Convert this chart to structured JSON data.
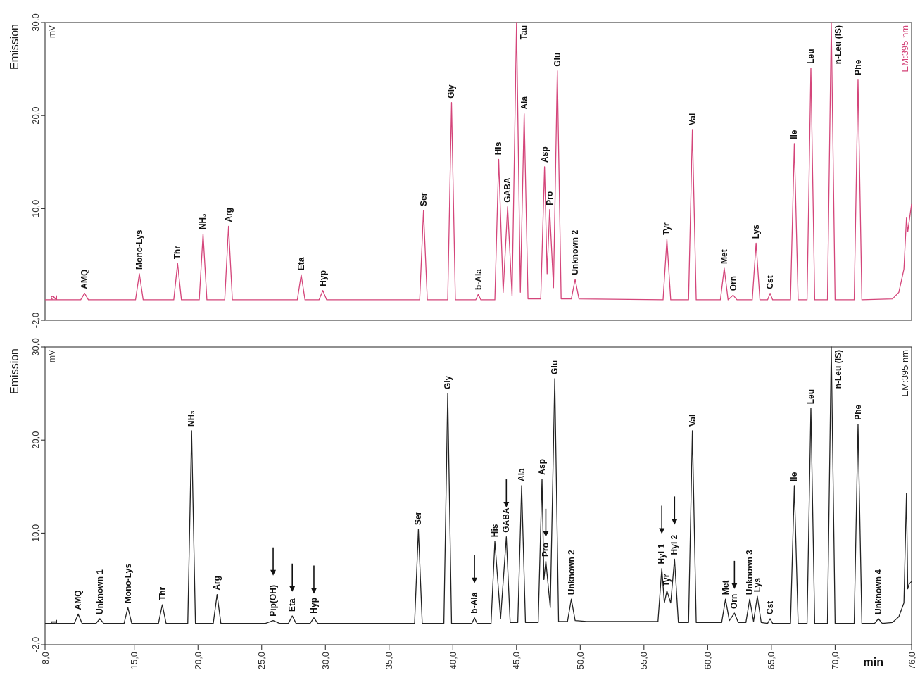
{
  "chart_data": [
    {
      "type": "line",
      "ylabel": "Emission",
      "xlim": [
        8,
        76
      ],
      "ylim": [
        -2,
        30
      ],
      "tick_labels": "y",
      "yticks": [
        {
          "value": -2,
          "label": "-2,0"
        },
        {
          "value": 10,
          "label": "10,0"
        },
        {
          "value": 20,
          "label": "20,0"
        },
        {
          "value": 30,
          "label": "30,0"
        }
      ],
      "series": [
        {
          "color": "#d4457a",
          "x": [
            8.0,
            10.8,
            11.1,
            11.4,
            15.1,
            15.4,
            15.7,
            18.1,
            18.4,
            18.7,
            20.1,
            20.4,
            20.7,
            22.1,
            22.4,
            22.7,
            27.8,
            28.1,
            28.4,
            29.5,
            29.8,
            30.1,
            37.4,
            37.7,
            38.0,
            39.6,
            39.9,
            40.2,
            41.8,
            42.0,
            42.2,
            43.3,
            43.6,
            43.95,
            44.3,
            44.65,
            45.0,
            45.3,
            45.6,
            45.9,
            46.9,
            47.2,
            47.4,
            47.6,
            47.9,
            48.2,
            48.5,
            49.3,
            49.6,
            49.9,
            56.5,
            56.8,
            57.1,
            58.5,
            58.8,
            59.1,
            61.0,
            61.3,
            61.6,
            62.0,
            62.3,
            63.5,
            63.8,
            64.1,
            64.7,
            64.9,
            65.1,
            66.5,
            66.8,
            67.1,
            67.8,
            68.1,
            68.4,
            69.4,
            69.7,
            70.0,
            71.5,
            71.8,
            72.1,
            74.5,
            75.0,
            75.4,
            75.6,
            75.7,
            75.8,
            76.0
          ],
          "values": [
            0.2,
            0.2,
            0.9,
            0.2,
            0.2,
            3.0,
            0.2,
            0.2,
            4.1,
            0.2,
            0.2,
            7.3,
            0.2,
            0.2,
            8.1,
            0.2,
            0.2,
            2.9,
            0.2,
            0.2,
            1.2,
            0.2,
            0.2,
            9.8,
            0.2,
            0.2,
            21.4,
            0.2,
            0.2,
            0.8,
            0.2,
            0.2,
            15.3,
            1.0,
            10.2,
            0.6,
            30,
            1.0,
            20.2,
            0.3,
            0.3,
            14.5,
            3.0,
            9.9,
            1.5,
            24.8,
            0.3,
            0.3,
            2.4,
            0.3,
            0.2,
            6.7,
            0.2,
            0.2,
            18.5,
            0.2,
            0.2,
            3.6,
            0.2,
            0.7,
            0.2,
            0.2,
            6.3,
            0.2,
            0.2,
            0.9,
            0.2,
            0.2,
            17.0,
            0.2,
            0.2,
            25.1,
            0.2,
            0.2,
            30,
            0.2,
            0.2,
            23.9,
            0.2,
            0.3,
            1.0,
            3.5,
            9.0,
            7.5,
            8.5,
            10.5
          ]
        }
      ],
      "annotations": [
        "mV",
        "EM:395 nm",
        "2",
        {
          "text": "AMQ",
          "x": 11.1,
          "y": 0.9
        },
        {
          "text": "Mono-Lys",
          "x": 15.4,
          "y": 3.0
        },
        {
          "text": "Thr",
          "x": 18.4,
          "y": 4.1
        },
        {
          "text": "NH₃",
          "x": 20.4,
          "y": 7.3
        },
        {
          "text": "Arg",
          "x": 22.4,
          "y": 8.1
        },
        {
          "text": "Eta",
          "x": 28.1,
          "y": 2.9
        },
        {
          "text": "Hyp",
          "x": 29.8,
          "y": 1.2
        },
        {
          "text": "Ser",
          "x": 37.7,
          "y": 9.8
        },
        {
          "text": "Gly",
          "x": 39.9,
          "y": 21.4
        },
        {
          "text": "b-Ala",
          "x": 42.0,
          "y": 0.8
        },
        {
          "text": "His",
          "x": 43.6,
          "y": 15.3
        },
        {
          "text": "GABA",
          "x": 44.3,
          "y": 10.2
        },
        {
          "text": "Tau",
          "x": 45.0,
          "y": 30
        },
        {
          "text": "Ala",
          "x": 45.6,
          "y": 20.2
        },
        {
          "text": "Asp",
          "x": 47.2,
          "y": 14.5
        },
        {
          "text": "Pro",
          "x": 47.6,
          "y": 9.9
        },
        {
          "text": "Glu",
          "x": 48.2,
          "y": 24.8
        },
        {
          "text": "Unknown 2",
          "x": 49.6,
          "y": 2.4
        },
        {
          "text": "Tyr",
          "x": 56.8,
          "y": 6.7
        },
        {
          "text": "Val",
          "x": 58.8,
          "y": 18.5
        },
        {
          "text": "Met",
          "x": 61.3,
          "y": 3.6
        },
        {
          "text": "Orn",
          "x": 62.0,
          "y": 0.7
        },
        {
          "text": "Lys",
          "x": 63.8,
          "y": 6.3
        },
        {
          "text": "Cst",
          "x": 64.9,
          "y": 0.9
        },
        {
          "text": "Ile",
          "x": 66.8,
          "y": 17.0
        },
        {
          "text": "Leu",
          "x": 68.1,
          "y": 25.1
        },
        {
          "text": "n-Leu (IS)",
          "x": 69.7,
          "y": 30
        },
        {
          "text": "Phe",
          "x": 71.8,
          "y": 23.9
        }
      ]
    },
    {
      "type": "line",
      "ylabel": "Emission",
      "xlabel": "min",
      "xlim": [
        8,
        76
      ],
      "ylim": [
        -2,
        30
      ],
      "yticks": [
        {
          "value": -2,
          "label": "-2,0"
        },
        {
          "value": 10,
          "label": "10,0"
        },
        {
          "value": 20,
          "label": "20,0"
        },
        {
          "value": 30,
          "label": "30,0"
        }
      ],
      "xticks": [
        {
          "value": 8,
          "label": "8,0"
        },
        {
          "value": 15,
          "label": "15,0"
        },
        {
          "value": 20,
          "label": "20,0"
        },
        {
          "value": 25,
          "label": "25,0"
        },
        {
          "value": 30,
          "label": "30,0"
        },
        {
          "value": 35,
          "label": "35,0"
        },
        {
          "value": 40,
          "label": "40,0"
        },
        {
          "value": 45,
          "label": "45,0"
        },
        {
          "value": 50,
          "label": "50,0"
        },
        {
          "value": 55,
          "label": "55,0"
        },
        {
          "value": 60,
          "label": "60,0"
        },
        {
          "value": 65,
          "label": "65,0"
        },
        {
          "value": 70,
          "label": "70,0"
        },
        {
          "value": 76,
          "label": "76,0"
        }
      ],
      "series": [
        {
          "color": "#222222",
          "x": [
            8.0,
            10.3,
            10.6,
            10.9,
            12.0,
            12.3,
            12.6,
            14.2,
            14.5,
            14.8,
            16.9,
            17.2,
            17.5,
            19.2,
            19.5,
            19.8,
            21.2,
            21.5,
            21.8,
            25.3,
            25.9,
            26.4,
            27.1,
            27.4,
            27.7,
            28.8,
            29.1,
            29.4,
            37.0,
            37.3,
            37.6,
            39.3,
            39.6,
            39.9,
            41.5,
            41.7,
            41.9,
            43.0,
            43.3,
            43.75,
            44.2,
            44.5,
            45.1,
            45.4,
            45.7,
            46.7,
            47.0,
            47.15,
            47.3,
            47.65,
            48.0,
            48.3,
            49.0,
            49.3,
            49.6,
            50.5,
            52.0,
            54.0,
            56.1,
            56.4,
            56.6,
            56.8,
            57.1,
            57.4,
            57.7,
            58.5,
            58.8,
            59.1,
            61.1,
            61.4,
            61.7,
            62.1,
            62.4,
            63.0,
            63.3,
            63.6,
            63.9,
            64.2,
            64.7,
            64.9,
            65.1,
            66.5,
            66.8,
            67.1,
            67.8,
            68.1,
            68.4,
            69.4,
            69.7,
            70.0,
            71.5,
            71.8,
            72.1,
            73.1,
            73.4,
            73.7,
            74.5,
            75.0,
            75.4,
            75.6,
            75.7,
            75.8,
            76.0
          ],
          "values": [
            0.3,
            0.3,
            1.3,
            0.3,
            0.3,
            0.8,
            0.3,
            0.3,
            2.0,
            0.3,
            0.3,
            2.3,
            0.3,
            0.3,
            21.0,
            0.3,
            0.3,
            3.4,
            0.3,
            0.3,
            0.6,
            0.3,
            0.3,
            1.1,
            0.3,
            0.3,
            0.9,
            0.3,
            0.3,
            10.4,
            0.3,
            0.3,
            25.0,
            0.3,
            0.3,
            0.9,
            0.3,
            0.3,
            9.1,
            0.8,
            9.6,
            0.4,
            0.4,
            15.1,
            0.4,
            0.4,
            15.8,
            5.0,
            7.0,
            2.0,
            26.6,
            0.5,
            0.5,
            2.9,
            0.6,
            0.5,
            0.5,
            0.5,
            0.5,
            6.2,
            2.5,
            3.8,
            2.5,
            7.2,
            0.4,
            0.4,
            21.0,
            0.4,
            0.4,
            2.9,
            0.6,
            1.4,
            0.4,
            0.4,
            2.9,
            0.5,
            3.2,
            0.4,
            0.3,
            0.8,
            0.3,
            0.3,
            15.1,
            0.3,
            0.3,
            23.4,
            0.3,
            0.3,
            30,
            0.3,
            0.3,
            21.7,
            0.3,
            0.3,
            0.8,
            0.3,
            0.4,
            1.0,
            2.5,
            14.3,
            4.0,
            4.5,
            4.8
          ]
        }
      ],
      "annotations": [
        "mV",
        "EM:395 nm",
        "1",
        {
          "text": "AMQ",
          "x": 10.6,
          "y": 1.3
        },
        {
          "text": "Unknown 1",
          "x": 12.3,
          "y": 0.8
        },
        {
          "text": "Mono-Lys",
          "x": 14.5,
          "y": 2.0
        },
        {
          "text": "Thr",
          "x": 17.2,
          "y": 2.3
        },
        {
          "text": "NH₃",
          "x": 19.5,
          "y": 21.0
        },
        {
          "text": "Arg",
          "x": 21.5,
          "y": 3.4
        },
        {
          "text": "Pip(OH)",
          "x": 25.9,
          "y": 0.6
        },
        {
          "text": "Eta",
          "x": 27.4,
          "y": 1.1
        },
        {
          "text": "Hyp",
          "x": 29.1,
          "y": 0.9
        },
        {
          "text": "Ser",
          "x": 37.3,
          "y": 10.4
        },
        {
          "text": "Gly",
          "x": 39.6,
          "y": 25.0
        },
        {
          "text": "b-Ala",
          "x": 41.7,
          "y": 0.9
        },
        {
          "text": "His",
          "x": 43.3,
          "y": 9.1
        },
        {
          "text": "GABA",
          "x": 44.2,
          "y": 9.6
        },
        {
          "text": "Ala",
          "x": 45.4,
          "y": 15.1
        },
        {
          "text": "Asp",
          "x": 47.0,
          "y": 15.8
        },
        {
          "text": "Pro",
          "x": 47.3,
          "y": 7.0
        },
        {
          "text": "Glu",
          "x": 48.0,
          "y": 26.6
        },
        {
          "text": "Unknown 2",
          "x": 49.3,
          "y": 2.9
        },
        {
          "text": "Hyl 1",
          "x": 56.4,
          "y": 6.2
        },
        {
          "text": "Tyr",
          "x": 56.8,
          "y": 3.8
        },
        {
          "text": "Hyl 2",
          "x": 57.4,
          "y": 7.2
        },
        {
          "text": "Val",
          "x": 58.8,
          "y": 21.0
        },
        {
          "text": "Met",
          "x": 61.4,
          "y": 2.9
        },
        {
          "text": "Orn",
          "x": 62.1,
          "y": 1.4
        },
        {
          "text": "Unknown 3",
          "x": 63.3,
          "y": 2.9
        },
        {
          "text": "Lys",
          "x": 63.9,
          "y": 3.2
        },
        {
          "text": "Cst",
          "x": 64.9,
          "y": 0.8
        },
        {
          "text": "Ile",
          "x": 66.8,
          "y": 15.1
        },
        {
          "text": "Leu",
          "x": 68.1,
          "y": 23.4
        },
        {
          "text": "n-Leu (IS)",
          "x": 69.7,
          "y": 30
        },
        {
          "text": "Phe",
          "x": 71.8,
          "y": 21.7
        },
        {
          "text": "Unknown 4",
          "x": 73.4,
          "y": 0.8
        }
      ]
    }
  ]
}
